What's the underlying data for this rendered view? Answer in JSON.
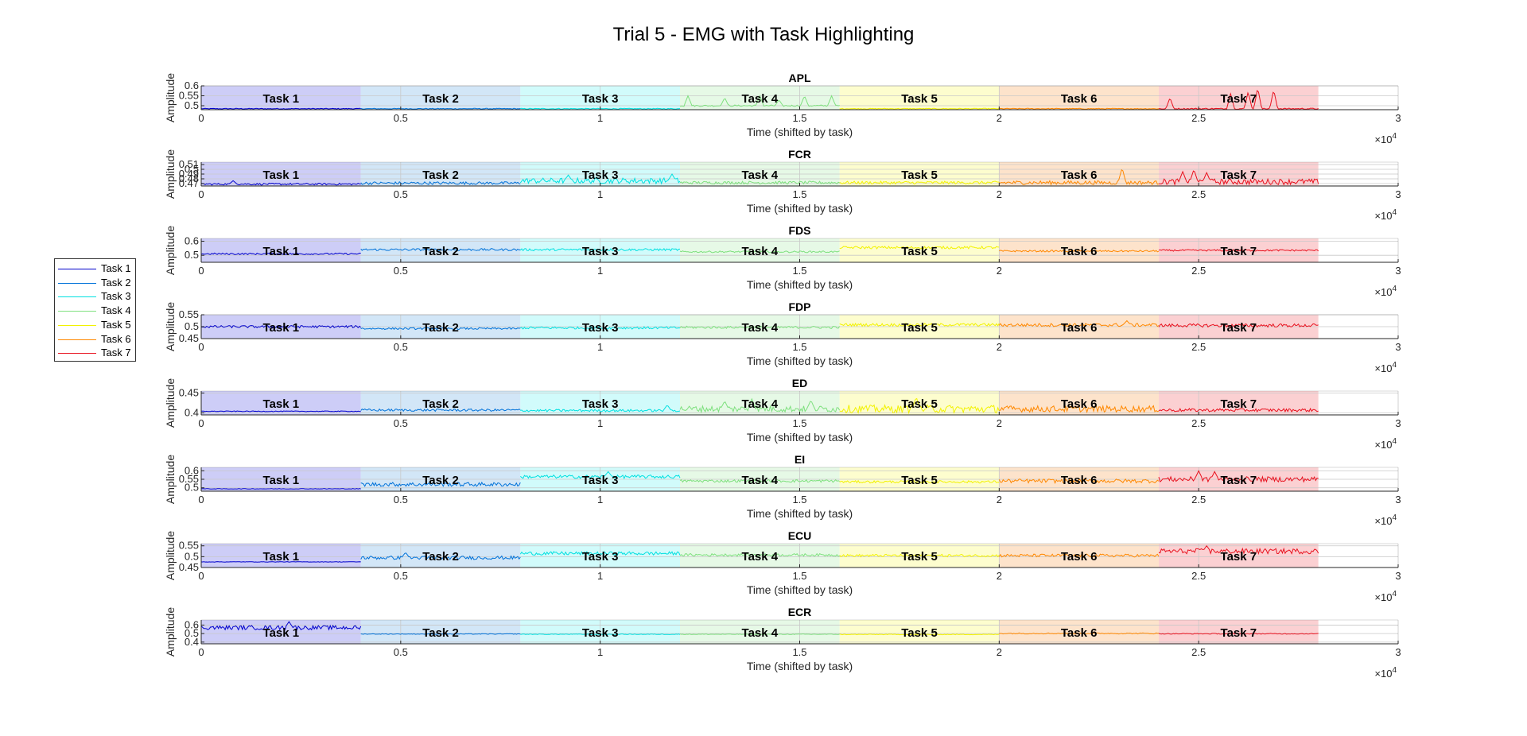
{
  "title": "Trial 5 - EMG with Task Highlighting",
  "legend": {
    "items": [
      {
        "label": "Task 1",
        "color": "#0000cc"
      },
      {
        "label": "Task 2",
        "color": "#0072d9"
      },
      {
        "label": "Task 3",
        "color": "#00e0e0"
      },
      {
        "label": "Task 4",
        "color": "#7ee07e"
      },
      {
        "label": "Task 5",
        "color": "#f2f200"
      },
      {
        "label": "Task 6",
        "color": "#ff8800"
      },
      {
        "label": "Task 7",
        "color": "#e8111e"
      }
    ]
  },
  "chart_data": {
    "type": "line",
    "xlabel": "Time (shifted by task)",
    "ylabel": "Amplitude",
    "x_exponent_label": "×10",
    "x_exponent": "4",
    "xlim": [
      0,
      30000
    ],
    "xticks": [
      0,
      5000,
      10000,
      15000,
      20000,
      25000,
      30000
    ],
    "xtick_labels": [
      "0",
      "0.5",
      "1",
      "1.5",
      "2",
      "2.5",
      "3"
    ],
    "grid": true,
    "legend_position": "left-outside",
    "task_segments": [
      {
        "label": "Task 1",
        "start": 0,
        "end": 4000,
        "shade": "#c8c8f6"
      },
      {
        "label": "Task 2",
        "start": 4000,
        "end": 8000,
        "shade": "#cde3f6"
      },
      {
        "label": "Task 3",
        "start": 8000,
        "end": 12000,
        "shade": "#ccfbfb"
      },
      {
        "label": "Task 4",
        "start": 12000,
        "end": 16000,
        "shade": "#e3f8e3"
      },
      {
        "label": "Task 5",
        "start": 16000,
        "end": 20000,
        "shade": "#fdfdc9"
      },
      {
        "label": "Task 6",
        "start": 20000,
        "end": 24000,
        "shade": "#fde0c5"
      },
      {
        "label": "Task 7",
        "start": 24000,
        "end": 28000,
        "shade": "#fbcbcd"
      }
    ],
    "subplots": [
      {
        "name": "APL",
        "ylim": [
          0.48,
          0.6
        ],
        "yticks": [
          0.5,
          0.55,
          0.6
        ],
        "ytick_labels": [
          "0.5",
          "0.55",
          "0.6"
        ],
        "series": [
          {
            "name": "Task 1",
            "base": 0.485,
            "noise": 0.002,
            "spikes": []
          },
          {
            "name": "Task 2",
            "base": 0.485,
            "noise": 0.002,
            "spikes": []
          },
          {
            "name": "Task 3",
            "base": 0.485,
            "noise": 0.002,
            "spikes": []
          },
          {
            "name": "Task 4",
            "base": 0.5,
            "noise": 0.004,
            "spikes": [
              [
                0.05,
                0.55
              ],
              [
                0.28,
                0.54
              ],
              [
                0.5,
                0.55
              ],
              [
                0.62,
                0.53
              ],
              [
                0.78,
                0.55
              ],
              [
                0.95,
                0.55
              ]
            ]
          },
          {
            "name": "Task 5",
            "base": 0.485,
            "noise": 0.002,
            "spikes": []
          },
          {
            "name": "Task 6",
            "base": 0.485,
            "noise": 0.002,
            "spikes": []
          },
          {
            "name": "Task 7",
            "base": 0.485,
            "noise": 0.003,
            "spikes": [
              [
                0.07,
                0.54
              ],
              [
                0.45,
                0.56
              ],
              [
                0.56,
                0.57
              ],
              [
                0.62,
                0.59
              ],
              [
                0.72,
                0.58
              ]
            ]
          }
        ]
      },
      {
        "name": "FCR",
        "ylim": [
          0.465,
          0.515
        ],
        "yticks": [
          0.47,
          0.48,
          0.49,
          0.5,
          0.51
        ],
        "ytick_labels": [
          "0.47",
          "0.48",
          "0.49",
          "0.5",
          "0.51"
        ],
        "series": [
          {
            "name": "Task 1",
            "base": 0.469,
            "noise": 0.002,
            "spikes": [
              [
                0.2,
                0.476
              ]
            ]
          },
          {
            "name": "Task 2",
            "base": 0.471,
            "noise": 0.003,
            "spikes": []
          },
          {
            "name": "Task 3",
            "base": 0.476,
            "noise": 0.006,
            "spikes": [
              [
                0.3,
                0.488
              ],
              [
                0.95,
                0.49
              ]
            ]
          },
          {
            "name": "Task 4",
            "base": 0.472,
            "noise": 0.003,
            "spikes": []
          },
          {
            "name": "Task 5",
            "base": 0.472,
            "noise": 0.003,
            "spikes": []
          },
          {
            "name": "Task 6",
            "base": 0.472,
            "noise": 0.004,
            "spikes": [
              [
                0.77,
                0.503
              ]
            ]
          },
          {
            "name": "Task 7",
            "base": 0.474,
            "noise": 0.006,
            "spikes": [
              [
                0.15,
                0.495
              ],
              [
                0.22,
                0.5
              ],
              [
                0.3,
                0.493
              ]
            ]
          }
        ]
      },
      {
        "name": "FDS",
        "ylim": [
          0.45,
          0.62
        ],
        "yticks": [
          0.5,
          0.6
        ],
        "ytick_labels": [
          "0.5",
          "0.6"
        ],
        "series": [
          {
            "name": "Task 1",
            "base": 0.51,
            "noise": 0.006,
            "spikes": []
          },
          {
            "name": "Task 2",
            "base": 0.54,
            "noise": 0.008,
            "spikes": []
          },
          {
            "name": "Task 3",
            "base": 0.54,
            "noise": 0.008,
            "spikes": []
          },
          {
            "name": "Task 4",
            "base": 0.525,
            "noise": 0.006,
            "spikes": []
          },
          {
            "name": "Task 5",
            "base": 0.555,
            "noise": 0.009,
            "spikes": []
          },
          {
            "name": "Task 6",
            "base": 0.53,
            "noise": 0.006,
            "spikes": []
          },
          {
            "name": "Task 7",
            "base": 0.535,
            "noise": 0.006,
            "spikes": []
          }
        ]
      },
      {
        "name": "FDP",
        "ylim": [
          0.45,
          0.55
        ],
        "yticks": [
          0.45,
          0.5,
          0.55
        ],
        "ytick_labels": [
          "0.45",
          "0.5",
          "0.55"
        ],
        "series": [
          {
            "name": "Task 1",
            "base": 0.5,
            "noise": 0.005,
            "spikes": []
          },
          {
            "name": "Task 2",
            "base": 0.492,
            "noise": 0.004,
            "spikes": []
          },
          {
            "name": "Task 3",
            "base": 0.495,
            "noise": 0.005,
            "spikes": []
          },
          {
            "name": "Task 4",
            "base": 0.497,
            "noise": 0.005,
            "spikes": []
          },
          {
            "name": "Task 5",
            "base": 0.508,
            "noise": 0.006,
            "spikes": []
          },
          {
            "name": "Task 6",
            "base": 0.507,
            "noise": 0.007,
            "spikes": [
              [
                0.8,
                0.525
              ]
            ]
          },
          {
            "name": "Task 7",
            "base": 0.505,
            "noise": 0.007,
            "spikes": []
          }
        ]
      },
      {
        "name": "ED",
        "ylim": [
          0.395,
          0.455
        ],
        "yticks": [
          0.4,
          0.45
        ],
        "ytick_labels": [
          "0.4",
          "0.45"
        ],
        "series": [
          {
            "name": "Task 1",
            "base": 0.404,
            "noise": 0.001,
            "spikes": []
          },
          {
            "name": "Task 2",
            "base": 0.407,
            "noise": 0.003,
            "spikes": []
          },
          {
            "name": "Task 3",
            "base": 0.406,
            "noise": 0.003,
            "spikes": [
              [
                0.92,
                0.42
              ]
            ]
          },
          {
            "name": "Task 4",
            "base": 0.41,
            "noise": 0.008,
            "spikes": [
              [
                0.28,
                0.43
              ],
              [
                0.45,
                0.435
              ],
              [
                0.82,
                0.432
              ]
            ]
          },
          {
            "name": "Task 5",
            "base": 0.41,
            "noise": 0.01,
            "spikes": [
              [
                0.48,
                0.44
              ]
            ]
          },
          {
            "name": "Task 6",
            "base": 0.41,
            "noise": 0.008,
            "spikes": []
          },
          {
            "name": "Task 7",
            "base": 0.407,
            "noise": 0.004,
            "spikes": []
          }
        ]
      },
      {
        "name": "EI",
        "ylim": [
          0.48,
          0.62
        ],
        "yticks": [
          0.5,
          0.55,
          0.6
        ],
        "ytick_labels": [
          "0.5",
          "0.55",
          "0.6"
        ],
        "series": [
          {
            "name": "Task 1",
            "base": 0.494,
            "noise": 0.0015,
            "spikes": []
          },
          {
            "name": "Task 2",
            "base": 0.52,
            "noise": 0.012,
            "spikes": []
          },
          {
            "name": "Task 3",
            "base": 0.565,
            "noise": 0.01,
            "spikes": [
              [
                0.55,
                0.595
              ]
            ]
          },
          {
            "name": "Task 4",
            "base": 0.54,
            "noise": 0.008,
            "spikes": []
          },
          {
            "name": "Task 5",
            "base": 0.535,
            "noise": 0.007,
            "spikes": []
          },
          {
            "name": "Task 6",
            "base": 0.54,
            "noise": 0.012,
            "spikes": []
          },
          {
            "name": "Task 7",
            "base": 0.55,
            "noise": 0.015,
            "spikes": [
              [
                0.25,
                0.6
              ],
              [
                0.35,
                0.595
              ]
            ]
          }
        ]
      },
      {
        "name": "ECU",
        "ylim": [
          0.45,
          0.56
        ],
        "yticks": [
          0.45,
          0.5,
          0.55
        ],
        "ytick_labels": [
          "0.45",
          "0.5",
          "0.55"
        ],
        "series": [
          {
            "name": "Task 1",
            "base": 0.476,
            "noise": 0.001,
            "spikes": []
          },
          {
            "name": "Task 2",
            "base": 0.495,
            "noise": 0.008,
            "spikes": [
              [
                0.28,
                0.52
              ]
            ]
          },
          {
            "name": "Task 3",
            "base": 0.515,
            "noise": 0.008,
            "spikes": []
          },
          {
            "name": "Task 4",
            "base": 0.508,
            "noise": 0.006,
            "spikes": []
          },
          {
            "name": "Task 5",
            "base": 0.505,
            "noise": 0.006,
            "spikes": []
          },
          {
            "name": "Task 6",
            "base": 0.505,
            "noise": 0.007,
            "spikes": []
          },
          {
            "name": "Task 7",
            "base": 0.525,
            "noise": 0.012,
            "spikes": [
              [
                0.3,
                0.55
              ]
            ]
          }
        ]
      },
      {
        "name": "ECR",
        "ylim": [
          0.38,
          0.66
        ],
        "yticks": [
          0.4,
          0.5,
          0.6
        ],
        "ytick_labels": [
          "0.4",
          "0.5",
          "0.6"
        ],
        "series": [
          {
            "name": "Task 1",
            "base": 0.57,
            "noise": 0.025,
            "spikes": [
              [
                0.55,
                0.64
              ]
            ]
          },
          {
            "name": "Task 2",
            "base": 0.495,
            "noise": 0.004,
            "spikes": []
          },
          {
            "name": "Task 3",
            "base": 0.492,
            "noise": 0.004,
            "spikes": []
          },
          {
            "name": "Task 4",
            "base": 0.492,
            "noise": 0.004,
            "spikes": []
          },
          {
            "name": "Task 5",
            "base": 0.49,
            "noise": 0.004,
            "spikes": []
          },
          {
            "name": "Task 6",
            "base": 0.502,
            "noise": 0.007,
            "spikes": []
          },
          {
            "name": "Task 7",
            "base": 0.498,
            "noise": 0.005,
            "spikes": []
          }
        ]
      }
    ]
  }
}
